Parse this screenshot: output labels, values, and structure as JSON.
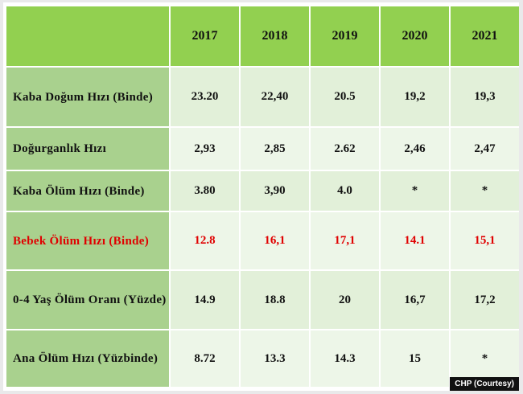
{
  "table": {
    "header": {
      "corner": "",
      "years": [
        "2017",
        "2018",
        "2019",
        "2020",
        "2021"
      ]
    },
    "rows": [
      {
        "label": "Kaba Doğum Hızı (Binde)",
        "values": [
          "23.20",
          "22,40",
          "20.5",
          "19,2",
          "19,3"
        ],
        "highlight": false
      },
      {
        "label": "Doğurganlık Hızı",
        "values": [
          "2,93",
          "2,85",
          "2.62",
          "2,46",
          "2,47"
        ],
        "highlight": false
      },
      {
        "label": "Kaba Ölüm Hızı (Binde)",
        "values": [
          "3.80",
          "3,90",
          "4.0",
          "*",
          "*"
        ],
        "highlight": false
      },
      {
        "label": "Bebek Ölüm Hızı (Binde)",
        "values": [
          "12.8",
          "16,1",
          "17,1",
          "14.1",
          "15,1"
        ],
        "highlight": true,
        "highlight_color": "#e00000"
      },
      {
        "label": "0-4 Yaş Ölüm Oranı (Yüzde)",
        "values": [
          "14.9",
          "18.8",
          "20",
          "16,7",
          "17,2"
        ],
        "highlight": false
      },
      {
        "label": "Ana Ölüm Hızı (Yüzbinde)",
        "values": [
          "8.72",
          "13.3",
          "14.3",
          "15",
          "*"
        ],
        "highlight": false
      }
    ]
  },
  "colors": {
    "header_green": "#92d050",
    "label_green": "#a9d18e",
    "cell_green": "#e2f0d9"
  },
  "credit": "CHP (Courtesy)"
}
